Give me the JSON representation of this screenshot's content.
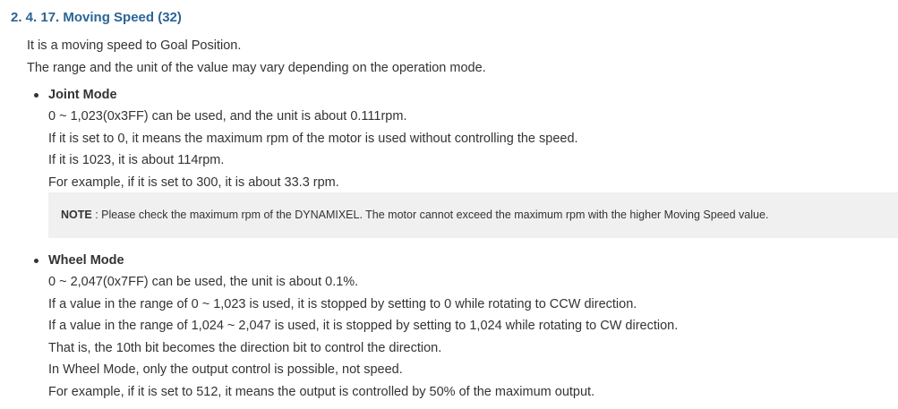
{
  "section": {
    "title": "2. 4. 17. Moving Speed (32)"
  },
  "intro": [
    "It is a moving speed to Goal Position.",
    "The range and the unit of the value may vary depending on the operation mode."
  ],
  "joint_mode": {
    "heading": "Joint Mode",
    "lines": [
      "0 ~ 1,023(0x3FF) can be used, and the unit is about 0.111rpm.",
      "If it is set to 0, it means the maximum rpm of the motor is used without controlling the speed.",
      "If it is 1023, it is about 114rpm.",
      "For example, if it is set to 300, it is about 33.3 rpm."
    ]
  },
  "note": {
    "label": "NOTE",
    "text": " : Please check the maximum rpm of the DYNAMIXEL. The motor cannot exceed the maximum rpm with the higher Moving Speed value."
  },
  "wheel_mode": {
    "heading": "Wheel Mode",
    "lines": [
      "0 ~ 2,047(0x7FF) can be used, the unit is about 0.1%.",
      "If a value in the range of 0 ~ 1,023 is used, it is stopped by setting to 0 while rotating to CCW direction.",
      "If a value in the range of 1,024 ~ 2,047 is used, it is stopped by setting to 1,024 while rotating to CW direction.",
      "That is, the 10th bit becomes the direction bit to control the direction.",
      "In Wheel Mode, only the output control is possible, not speed.",
      "For example, if it is set to 512, it means the output is controlled by 50% of the maximum output."
    ]
  }
}
